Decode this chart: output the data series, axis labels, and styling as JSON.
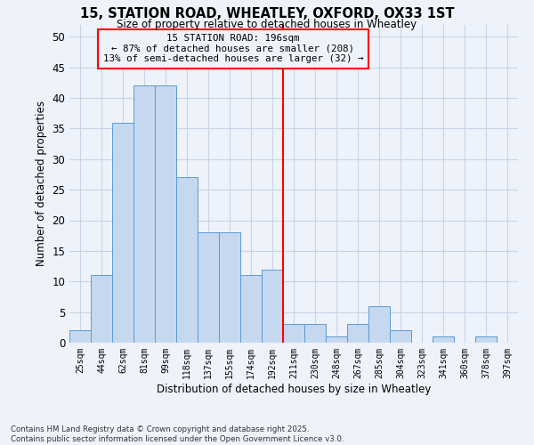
{
  "title_line1": "15, STATION ROAD, WHEATLEY, OXFORD, OX33 1ST",
  "title_line2": "Size of property relative to detached houses in Wheatley",
  "xlabel": "Distribution of detached houses by size in Wheatley",
  "ylabel": "Number of detached properties",
  "footnote": "Contains HM Land Registry data © Crown copyright and database right 2025.\nContains public sector information licensed under the Open Government Licence v3.0.",
  "bin_labels": [
    "25sqm",
    "44sqm",
    "62sqm",
    "81sqm",
    "99sqm",
    "118sqm",
    "137sqm",
    "155sqm",
    "174sqm",
    "192sqm",
    "211sqm",
    "230sqm",
    "248sqm",
    "267sqm",
    "285sqm",
    "304sqm",
    "323sqm",
    "341sqm",
    "360sqm",
    "378sqm",
    "397sqm"
  ],
  "bar_heights": [
    2,
    11,
    36,
    42,
    42,
    27,
    18,
    18,
    11,
    12,
    3,
    3,
    1,
    3,
    6,
    2,
    0,
    1,
    0,
    1,
    0
  ],
  "bar_color": "#c5d8f0",
  "bar_edgecolor": "#5b9bd5",
  "grid_color": "#c8d4e8",
  "vline_x_bin_index": 9.5,
  "ylim": [
    0,
    52
  ],
  "yticks": [
    0,
    5,
    10,
    15,
    20,
    25,
    30,
    35,
    40,
    45,
    50
  ],
  "annotation_line1": "15 STATION ROAD: 196sqm",
  "annotation_line2": "← 87% of detached houses are smaller (208)",
  "annotation_line3": "13% of semi-detached houses are larger (32) →",
  "bg_color": "#eef2fa"
}
